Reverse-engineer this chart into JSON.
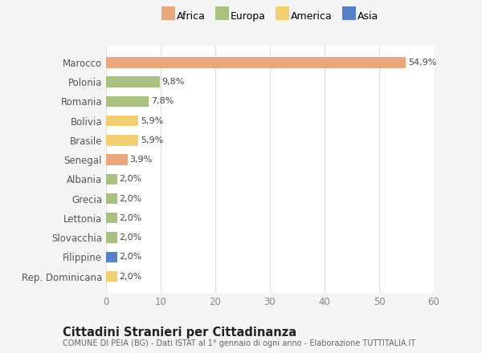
{
  "categories": [
    "Rep. Dominicana",
    "Filippine",
    "Slovacchia",
    "Lettonia",
    "Grecia",
    "Albania",
    "Senegal",
    "Brasile",
    "Bolivia",
    "Romania",
    "Polonia",
    "Marocco"
  ],
  "values": [
    2.0,
    2.0,
    2.0,
    2.0,
    2.0,
    2.0,
    3.9,
    5.9,
    5.9,
    7.8,
    9.8,
    54.9
  ],
  "labels": [
    "2,0%",
    "2,0%",
    "2,0%",
    "2,0%",
    "2,0%",
    "2,0%",
    "3,9%",
    "5,9%",
    "5,9%",
    "7,8%",
    "9,8%",
    "54,9%"
  ],
  "continents": [
    "America",
    "Asia",
    "Europa",
    "Europa",
    "Europa",
    "Europa",
    "Africa",
    "America",
    "America",
    "Europa",
    "Europa",
    "Africa"
  ],
  "bar_colors": [
    "#F2CF72",
    "#5B7EC9",
    "#A8C080",
    "#A8C080",
    "#A8C080",
    "#A8C080",
    "#E8A87C",
    "#F2CF72",
    "#F2CF72",
    "#A8C080",
    "#A8C080",
    "#E8A87C"
  ],
  "xlim": [
    0,
    60
  ],
  "xticks": [
    0,
    10,
    20,
    30,
    40,
    50,
    60
  ],
  "title": "Cittadini Stranieri per Cittadinanza",
  "subtitle": "COMUNE DI PEIA (BG) - Dati ISTAT al 1° gennaio di ogni anno - Elaborazione TUTTITALIA.IT",
  "plot_bg_color": "#ffffff",
  "fig_bg_color": "#f5f5f5",
  "legend_labels": [
    "Africa",
    "Europa",
    "America",
    "Asia"
  ],
  "legend_colors": [
    "#E8A87C",
    "#A8C080",
    "#F2CF72",
    "#5B7EC9"
  ]
}
